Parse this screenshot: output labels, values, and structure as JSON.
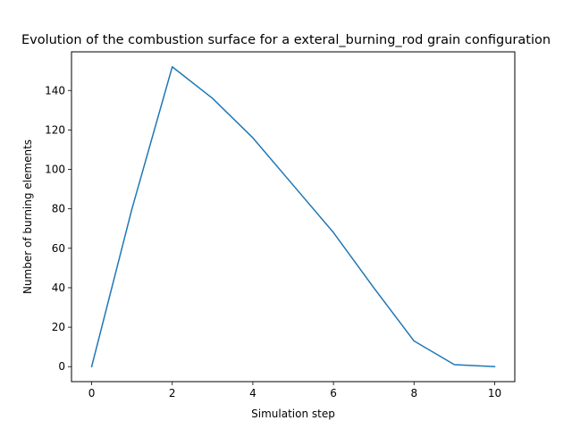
{
  "chart_data": {
    "type": "line",
    "title": "Evolution of the combustion surface for a exteral_burning_rod grain configuration",
    "xlabel": "Simulation step",
    "ylabel": "Number of burning elements",
    "xlim": [
      -0.5,
      10.5
    ],
    "ylim": [
      -7.6,
      159.6
    ],
    "xticks": [
      0,
      2,
      4,
      6,
      8,
      10
    ],
    "yticks": [
      0,
      20,
      40,
      60,
      80,
      100,
      120,
      140
    ],
    "grid": false,
    "legend": "none",
    "line_color": "#1f77b4",
    "series": [
      {
        "x": [
          0,
          1,
          2,
          3,
          4,
          5,
          6,
          7,
          8,
          9,
          10
        ],
        "values": [
          0,
          80,
          152,
          136,
          116,
          92,
          68,
          40,
          13,
          1,
          0
        ]
      }
    ]
  }
}
